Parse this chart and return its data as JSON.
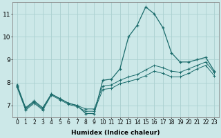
{
  "xlabel": "Humidex (Indice chaleur)",
  "background_color": "#cce8e8",
  "grid_color": "#aad0d0",
  "line_color": "#1a6b6b",
  "x": [
    0,
    1,
    2,
    3,
    4,
    5,
    6,
    7,
    8,
    9,
    10,
    11,
    12,
    13,
    14,
    15,
    16,
    17,
    18,
    19,
    20,
    21,
    22,
    23
  ],
  "y_main": [
    7.9,
    6.9,
    7.2,
    6.9,
    7.5,
    7.3,
    7.1,
    7.0,
    6.65,
    6.65,
    8.1,
    8.15,
    8.6,
    10.0,
    10.5,
    11.3,
    11.0,
    10.4,
    9.3,
    8.9,
    8.9,
    9.0,
    9.1,
    8.5
  ],
  "y_upper": [
    7.85,
    6.85,
    7.15,
    6.85,
    7.5,
    7.3,
    7.1,
    7.0,
    6.85,
    6.85,
    7.85,
    7.9,
    8.1,
    8.25,
    8.35,
    8.55,
    8.75,
    8.65,
    8.5,
    8.45,
    8.6,
    8.75,
    8.9,
    8.45
  ],
  "y_lower": [
    7.8,
    6.8,
    7.1,
    6.8,
    7.45,
    7.25,
    7.05,
    6.95,
    6.75,
    6.75,
    7.7,
    7.75,
    7.95,
    8.05,
    8.15,
    8.3,
    8.5,
    8.4,
    8.25,
    8.25,
    8.4,
    8.6,
    8.75,
    8.3
  ],
  "xlim": [
    0,
    23
  ],
  "ylim": [
    6.5,
    11.5
  ],
  "yticks": [
    7,
    8,
    9,
    10,
    11
  ],
  "xticks": [
    0,
    1,
    2,
    3,
    4,
    5,
    6,
    7,
    8,
    9,
    10,
    11,
    12,
    13,
    14,
    15,
    16,
    17,
    18,
    19,
    20,
    21,
    22,
    23
  ],
  "xlabel_fontsize": 6.5,
  "tick_fontsize": 5.5,
  "ytick_fontsize": 6.5
}
